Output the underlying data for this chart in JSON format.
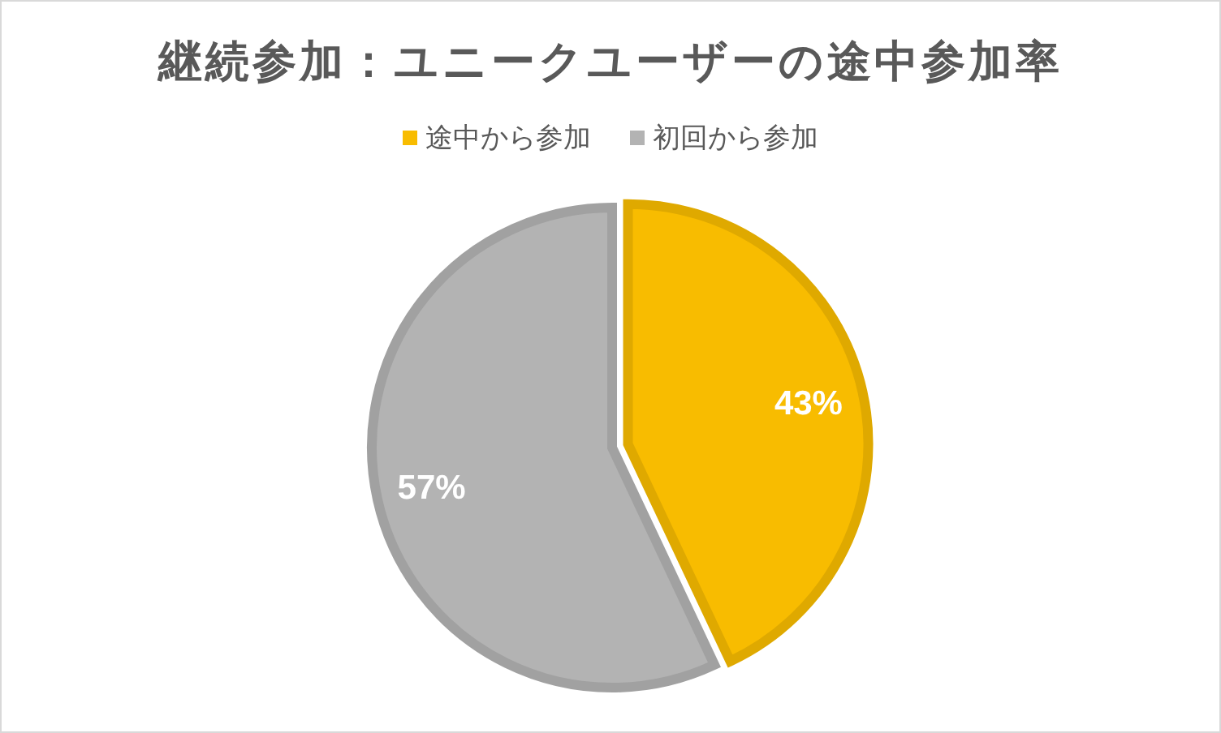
{
  "chart_data": {
    "type": "pie",
    "title": "継続参加：ユニークユーザーの途中参加率",
    "categories": [
      "途中から参加",
      "初回から参加"
    ],
    "values": [
      43,
      57
    ],
    "colors": [
      "#f8bc00",
      "#b3b3b3"
    ],
    "value_labels": [
      "43%",
      "57%"
    ],
    "legend": "top"
  }
}
